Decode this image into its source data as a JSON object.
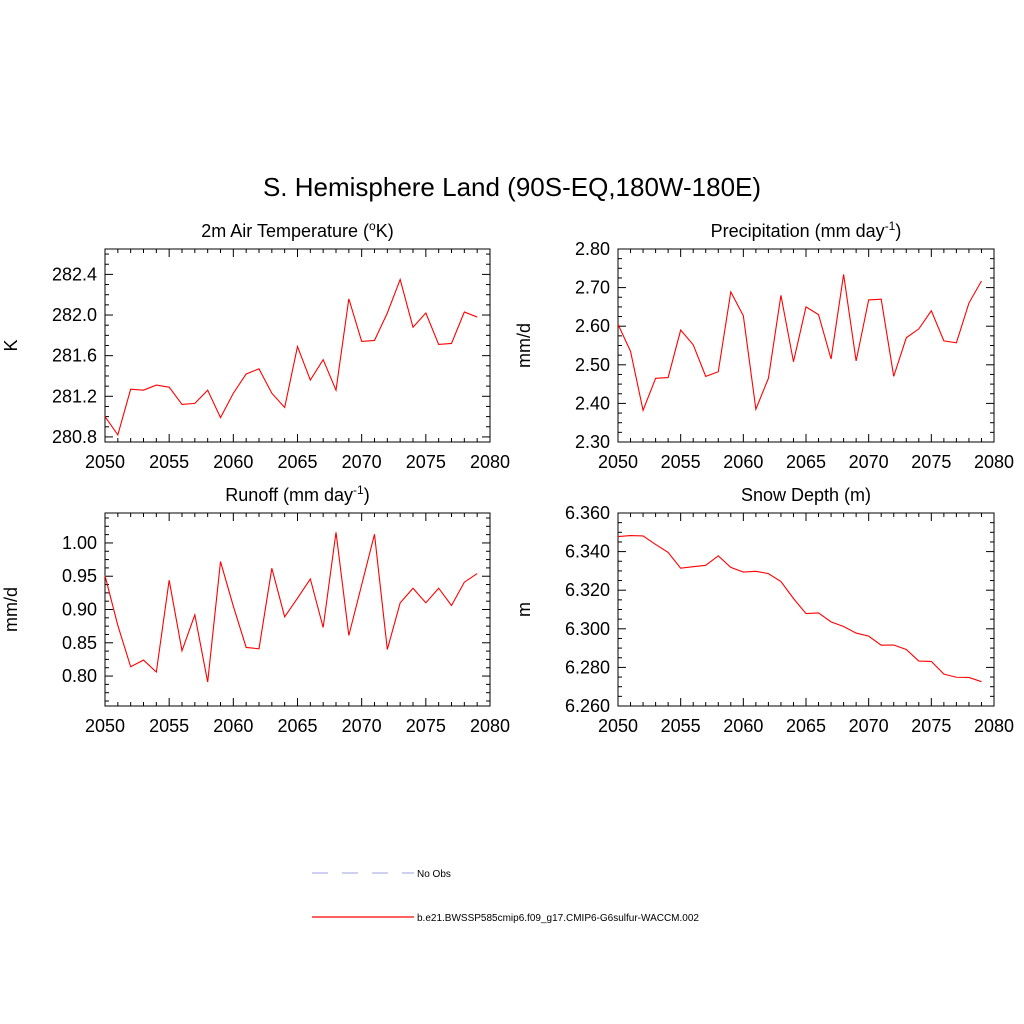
{
  "title": "S. Hemisphere Land (90S-EQ,180W-180E)",
  "colors": {
    "series": "#ff0000",
    "obs": "#b4b4e6",
    "axes": "#000000"
  },
  "legend": {
    "items": [
      {
        "label": "No Obs",
        "style": "dashed",
        "color": "#b4b4e6"
      },
      {
        "label": "b.e21.BWSSP585cmip6.f09_g17.CMIP6-G6sulfur-WACCM.002",
        "style": "solid",
        "color": "#ff0000"
      }
    ]
  },
  "chart_data": [
    {
      "type": "line",
      "title": "2m Air Temperature (",
      "title_sup": "o",
      "title_end": "K)",
      "ylabel": "K",
      "xlim": [
        2050,
        2080
      ],
      "ylim": [
        280.75,
        282.65
      ],
      "xticks": [
        2050,
        2055,
        2060,
        2065,
        2070,
        2075,
        2080
      ],
      "yticks": [
        280.8,
        281.2,
        281.6,
        282.0,
        282.4
      ],
      "ytick_labels": [
        "280.8",
        "281.2",
        "281.6",
        "282.0",
        "282.4"
      ],
      "x": [
        2050,
        2051,
        2052,
        2053,
        2054,
        2055,
        2056,
        2057,
        2058,
        2059,
        2060,
        2061,
        2062,
        2063,
        2064,
        2065,
        2066,
        2067,
        2068,
        2069,
        2070,
        2071,
        2072,
        2073,
        2074,
        2075,
        2076,
        2077,
        2078,
        2079
      ],
      "values": [
        281.0,
        280.82,
        281.27,
        281.26,
        281.31,
        281.29,
        281.12,
        281.13,
        281.26,
        280.99,
        281.23,
        281.42,
        281.47,
        281.23,
        281.09,
        281.69,
        281.36,
        281.56,
        281.26,
        282.16,
        281.74,
        281.75,
        282.02,
        282.35,
        281.88,
        282.02,
        281.71,
        281.72,
        282.03,
        281.98
      ]
    },
    {
      "type": "line",
      "title": "Precipitation (mm day",
      "title_sup": "-1",
      "title_end": ")",
      "ylabel": "mm/d",
      "xlim": [
        2050,
        2080
      ],
      "ylim": [
        2.3,
        2.8
      ],
      "xticks": [
        2050,
        2055,
        2060,
        2065,
        2070,
        2075,
        2080
      ],
      "yticks": [
        2.3,
        2.4,
        2.5,
        2.6,
        2.7,
        2.8
      ],
      "ytick_labels": [
        "2.30",
        "2.40",
        "2.50",
        "2.60",
        "2.70",
        "2.80"
      ],
      "x": [
        2050,
        2051,
        2052,
        2053,
        2054,
        2055,
        2056,
        2057,
        2058,
        2059,
        2060,
        2061,
        2062,
        2063,
        2064,
        2065,
        2066,
        2067,
        2068,
        2069,
        2070,
        2071,
        2072,
        2073,
        2074,
        2075,
        2076,
        2077,
        2078,
        2079
      ],
      "values": [
        2.605,
        2.535,
        2.382,
        2.465,
        2.467,
        2.59,
        2.552,
        2.47,
        2.482,
        2.689,
        2.627,
        2.385,
        2.465,
        2.68,
        2.508,
        2.65,
        2.63,
        2.515,
        2.734,
        2.51,
        2.668,
        2.67,
        2.47,
        2.57,
        2.593,
        2.64,
        2.562,
        2.557,
        2.66,
        2.717
      ]
    },
    {
      "type": "line",
      "title": "Runoff (mm day",
      "title_sup": "-1",
      "title_end": ")",
      "ylabel": "mm/d",
      "xlim": [
        2050,
        2080
      ],
      "ylim": [
        0.755,
        1.045
      ],
      "xticks": [
        2050,
        2055,
        2060,
        2065,
        2070,
        2075,
        2080
      ],
      "yticks": [
        0.8,
        0.85,
        0.9,
        0.95,
        1.0
      ],
      "ytick_labels": [
        "0.80",
        "0.85",
        "0.90",
        "0.95",
        "1.00"
      ],
      "x": [
        2050,
        2051,
        2052,
        2053,
        2054,
        2055,
        2056,
        2057,
        2058,
        2059,
        2060,
        2061,
        2062,
        2063,
        2064,
        2065,
        2066,
        2067,
        2068,
        2069,
        2070,
        2071,
        2072,
        2073,
        2074,
        2075,
        2076,
        2077,
        2078,
        2079
      ],
      "values": [
        0.951,
        0.876,
        0.814,
        0.824,
        0.806,
        0.944,
        0.838,
        0.892,
        0.791,
        0.972,
        0.905,
        0.843,
        0.841,
        0.962,
        0.889,
        0.917,
        0.946,
        0.873,
        1.016,
        0.861,
        0.937,
        1.013,
        0.84,
        0.91,
        0.932,
        0.91,
        0.932,
        0.906,
        0.941,
        0.954
      ]
    },
    {
      "type": "line",
      "title": "Snow Depth (m)",
      "title_sup": "",
      "title_end": "",
      "ylabel": "m",
      "xlim": [
        2050,
        2080
      ],
      "ylim": [
        6.26,
        6.36
      ],
      "xticks": [
        2050,
        2055,
        2060,
        2065,
        2070,
        2075,
        2080
      ],
      "yticks": [
        6.26,
        6.28,
        6.3,
        6.32,
        6.34,
        6.36
      ],
      "ytick_labels": [
        "6.260",
        "6.280",
        "6.300",
        "6.320",
        "6.340",
        "6.360"
      ],
      "x": [
        2050,
        2051,
        2052,
        2053,
        2054,
        2055,
        2056,
        2057,
        2058,
        2059,
        2060,
        2061,
        2062,
        2063,
        2064,
        2065,
        2066,
        2067,
        2068,
        2069,
        2070,
        2071,
        2072,
        2073,
        2074,
        2075,
        2076,
        2077,
        2078,
        2079
      ],
      "values": [
        6.3478,
        6.3483,
        6.3481,
        6.3437,
        6.3396,
        6.3314,
        6.3322,
        6.3329,
        6.3378,
        6.3318,
        6.3294,
        6.3298,
        6.3286,
        6.3245,
        6.3157,
        6.3079,
        6.3082,
        6.3036,
        6.3012,
        6.2978,
        6.2962,
        6.2915,
        6.2916,
        6.2893,
        6.2833,
        6.2831,
        6.2765,
        6.2749,
        6.2748,
        6.2726
      ]
    }
  ]
}
